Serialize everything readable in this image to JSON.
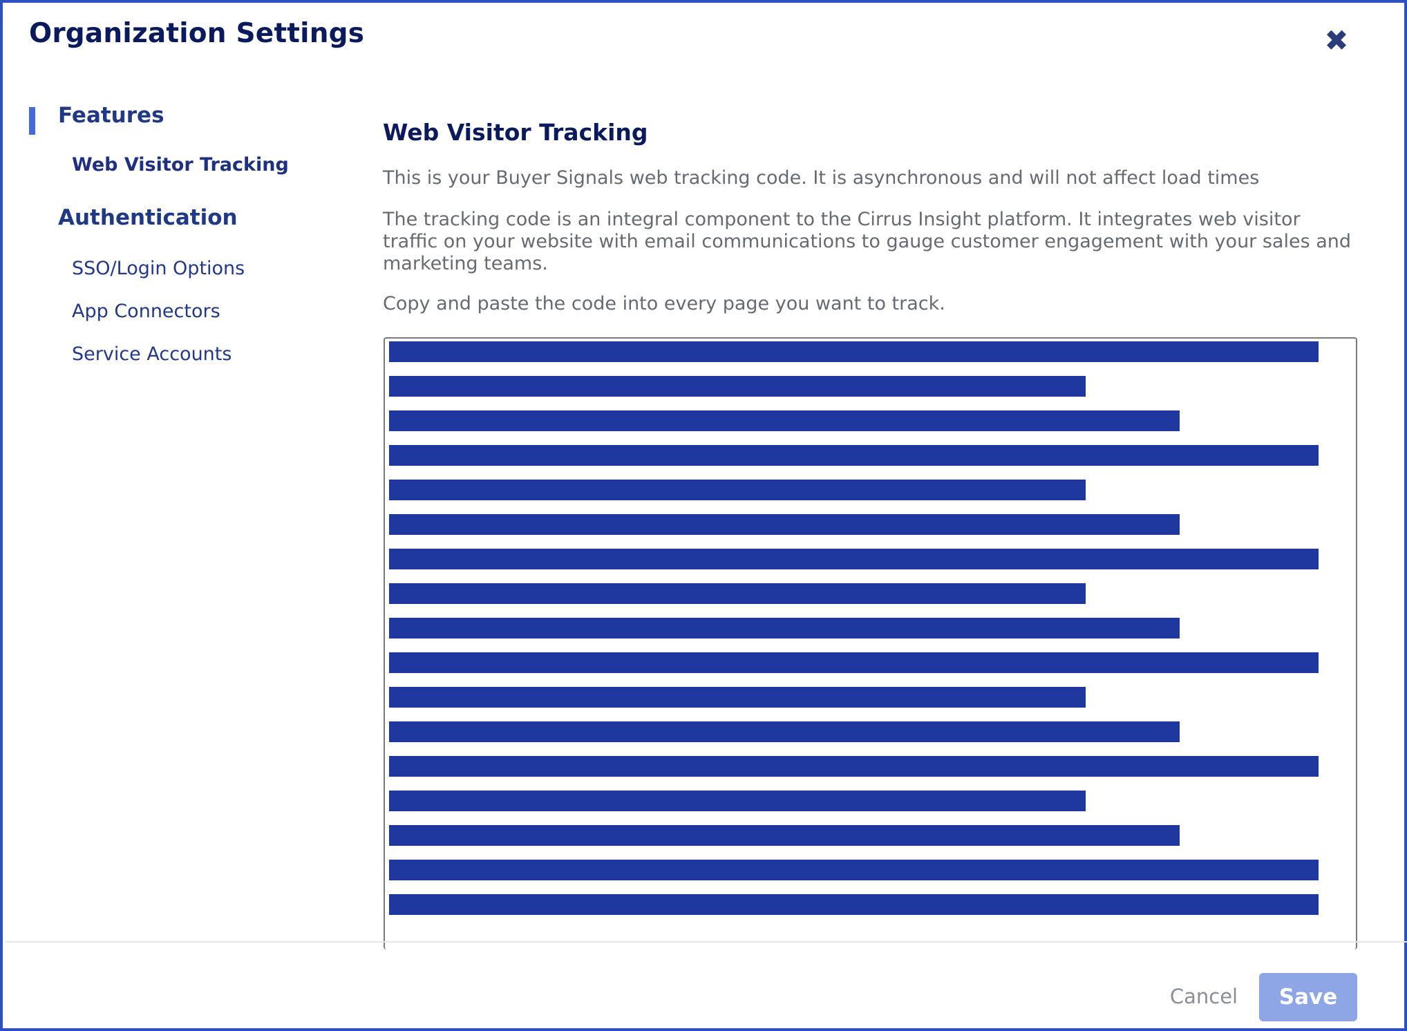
{
  "modal": {
    "title": "Organization Settings",
    "close_icon": "close-icon",
    "accent_color": "#2e4fc2"
  },
  "sidebar": {
    "groups": [
      {
        "label": "Features",
        "active": true,
        "items": [
          {
            "label": "Web Visitor Tracking",
            "active": true
          }
        ]
      },
      {
        "label": "Authentication",
        "active": false,
        "items": [
          {
            "label": "SSO/Login Options"
          },
          {
            "label": "App Connectors"
          },
          {
            "label": "Service Accounts"
          }
        ]
      }
    ]
  },
  "content": {
    "title": "Web Visitor Tracking",
    "paragraphs": [
      "This is your Buyer Signals web tracking code. It is asynchronous and will not affect load times",
      "The tracking code is an integral component to the Cirrus Insight platform. It integrates web visitor traffic on your website with email communications to gauge customer engagement with your sales and marketing teams.",
      "Copy and paste the code into every page you want to track."
    ],
    "code_redaction_color": "#1f38a0"
  },
  "footer": {
    "cancel_label": "Cancel",
    "save_label": "Save",
    "save_color": "#8fa6e6"
  }
}
